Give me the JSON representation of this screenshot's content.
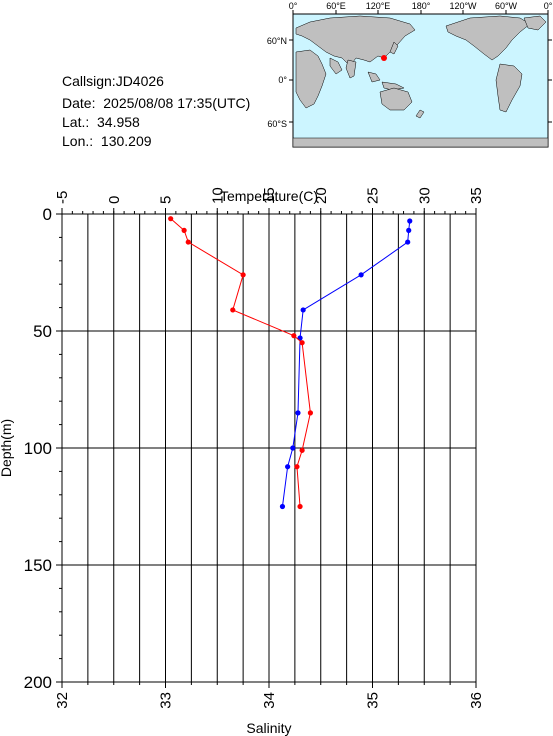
{
  "info": {
    "callsign": "Callsign:JD4026",
    "date": "Date:  2025/08/08 17:35(UTC)",
    "lat": "Lat.:  34.958",
    "lon": "Lon.:  130.209"
  },
  "map": {
    "top_labels": [
      "0°",
      "60°E",
      "120°E",
      "180°",
      "120°W",
      "60°W",
      "0°"
    ],
    "lat_labels": [
      "60°N",
      "0°",
      "60°S"
    ],
    "ocean_color": "#ccf5ff",
    "land_color": "#bfbfbf",
    "marker_color": "#ff0000"
  },
  "chart_data": {
    "type": "line",
    "temp_axis_title": "Temperature(C)",
    "salinity_axis_title": "Salinity",
    "depth_axis_title": "Depth(m)",
    "temp_ticks": [
      "-5",
      "0",
      "5",
      "10",
      "15",
      "20",
      "25",
      "30",
      "35"
    ],
    "salinity_ticks": [
      "32",
      "33",
      "34",
      "35",
      "36"
    ],
    "depth_ticks": [
      "0",
      "50",
      "100",
      "150",
      "200"
    ],
    "temp_range": [
      -5,
      35
    ],
    "salinity_range": [
      32,
      36
    ],
    "depth_range": [
      0,
      200
    ],
    "grid": true,
    "series": [
      {
        "axis": "temperature",
        "color": "#0000ff",
        "points": [
          {
            "x": 28.6,
            "depth": 3
          },
          {
            "x": 28.5,
            "depth": 7
          },
          {
            "x": 28.4,
            "depth": 12
          },
          {
            "x": 23.9,
            "depth": 26
          },
          {
            "x": 18.3,
            "depth": 41
          },
          {
            "x": 18.0,
            "depth": 53
          },
          {
            "x": 17.8,
            "depth": 85
          },
          {
            "x": 17.3,
            "depth": 100
          },
          {
            "x": 16.8,
            "depth": 108
          },
          {
            "x": 16.3,
            "depth": 125
          }
        ]
      },
      {
        "axis": "salinity",
        "color": "#ff0000",
        "points": [
          {
            "x": 33.05,
            "depth": 2
          },
          {
            "x": 33.18,
            "depth": 7
          },
          {
            "x": 33.22,
            "depth": 12
          },
          {
            "x": 33.75,
            "depth": 26
          },
          {
            "x": 33.65,
            "depth": 41
          },
          {
            "x": 34.24,
            "depth": 52
          },
          {
            "x": 34.32,
            "depth": 55
          },
          {
            "x": 34.4,
            "depth": 85
          },
          {
            "x": 34.32,
            "depth": 101
          },
          {
            "x": 34.27,
            "depth": 108
          },
          {
            "x": 34.3,
            "depth": 125
          }
        ]
      }
    ]
  }
}
